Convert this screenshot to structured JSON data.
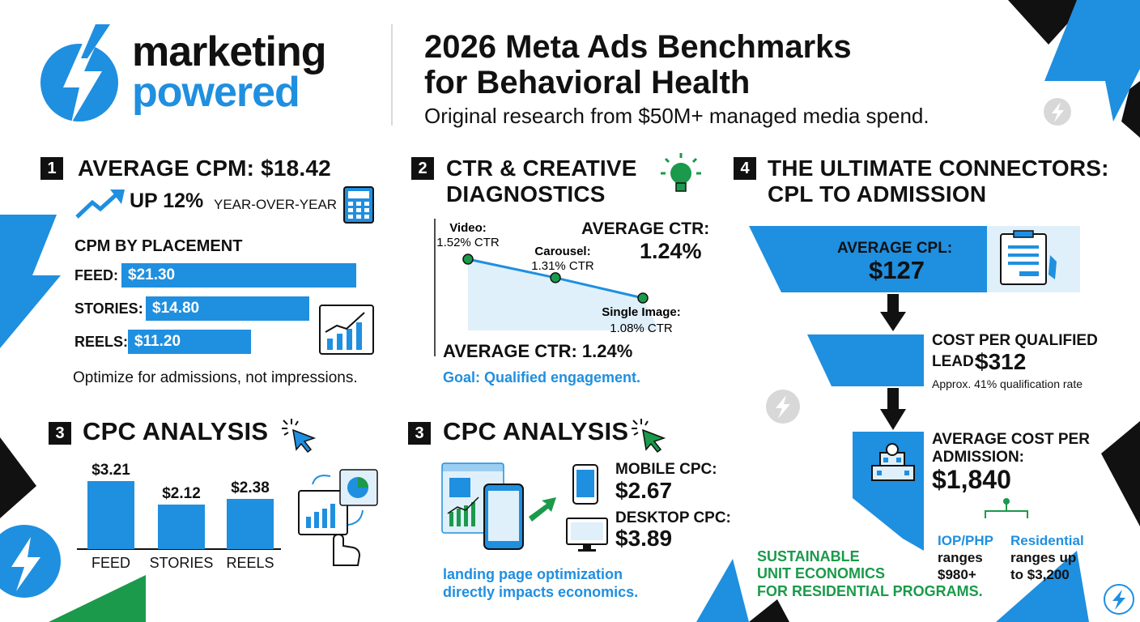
{
  "brand": {
    "line1": "marketing",
    "line2": "powered"
  },
  "header": {
    "title_line1": "2026 Meta Ads Benchmarks",
    "title_line2": "for Behavioral Health",
    "subtitle": "Original research from $50M+ managed media spend."
  },
  "section1": {
    "number": "1",
    "title": "AVERAGE CPM: $18.42",
    "trend_big": "UP 12%",
    "trend_small": "YEAR-OVER-YEAR",
    "placement_title": "CPM BY PLACEMENT",
    "note": "Optimize for admissions, not impressions."
  },
  "section2": {
    "number": "2",
    "title_line1": "CTR & CREATIVE",
    "title_line2": "DIAGNOSTICS",
    "avg_ctr_label": "AVERAGE CTR:",
    "avg_ctr_value": "1.24%",
    "avg_ctr_bottom": "AVERAGE CTR: 1.24%",
    "goal": "Goal: Qualified engagement."
  },
  "section3a": {
    "number": "3",
    "title": "CPC ANALYSIS"
  },
  "section3b": {
    "number": "3",
    "title": "CPC ANALYSIS",
    "mobile_label": "MOBILE CPC:",
    "mobile_value": "$2.67",
    "desktop_label": "DESKTOP CPC:",
    "desktop_value": "$3.89",
    "note_line1": "landing page optimization",
    "note_line2": "directly impacts economics."
  },
  "section4": {
    "number": "4",
    "title_line1": "THE ULTIMATE CONNECTORS:",
    "title_line2": "CPL TO ADMISSION",
    "cpl_label": "AVERAGE CPL:",
    "cpl_value": "$127",
    "cpql_label": "COST PER QUALIFIED",
    "cpql_label2": "LEAD:",
    "cpql_value": "$312",
    "cpql_note": "Approx. 41% qualification rate",
    "cpa_label1": "AVERAGE COST PER",
    "cpa_label2": "ADMISSION:",
    "cpa_value": "$1,840",
    "iop_title": "IOP/PHP",
    "iop_l2": "ranges",
    "iop_l3": "$980+",
    "res_title": "Residential",
    "res_l2": "ranges up",
    "res_l3": "to $3,200",
    "sustain_l1": "SUSTAINABLE",
    "sustain_l2": "UNIT ECONOMICS",
    "sustain_l3": "FOR RESIDENTIAL PROGRAMS."
  },
  "chart_data": [
    {
      "type": "bar",
      "title": "CPM BY PLACEMENT",
      "orientation": "horizontal",
      "categories": [
        "FEED:",
        "STORIES:",
        "REELS:"
      ],
      "values": [
        21.3,
        14.8,
        11.2
      ],
      "labels": [
        "$21.30",
        "$14.80",
        "$11.20"
      ]
    },
    {
      "type": "line",
      "series": [
        {
          "name": "",
          "points": [
            {
              "label_line1": "Video:",
              "label_line2": "1.52% CTR",
              "value": 1.52
            },
            {
              "label_line1": "Carousel:",
              "label_line2": "1.31% CTR",
              "value": 1.31
            },
            {
              "label_line1": "Single Image:",
              "label_line2": "1.08% CTR",
              "value": 1.08
            }
          ]
        }
      ]
    },
    {
      "type": "bar",
      "categories": [
        "FEED",
        "STORIES",
        "REELS"
      ],
      "values": [
        3.21,
        2.12,
        2.38
      ],
      "labels": [
        "$3.21",
        "$2.12",
        "$2.38"
      ]
    }
  ],
  "colors": {
    "accent": "#1f8fe0",
    "green": "#1a9a4a",
    "dark": "#111111",
    "light_blue": "#dff0fb"
  }
}
